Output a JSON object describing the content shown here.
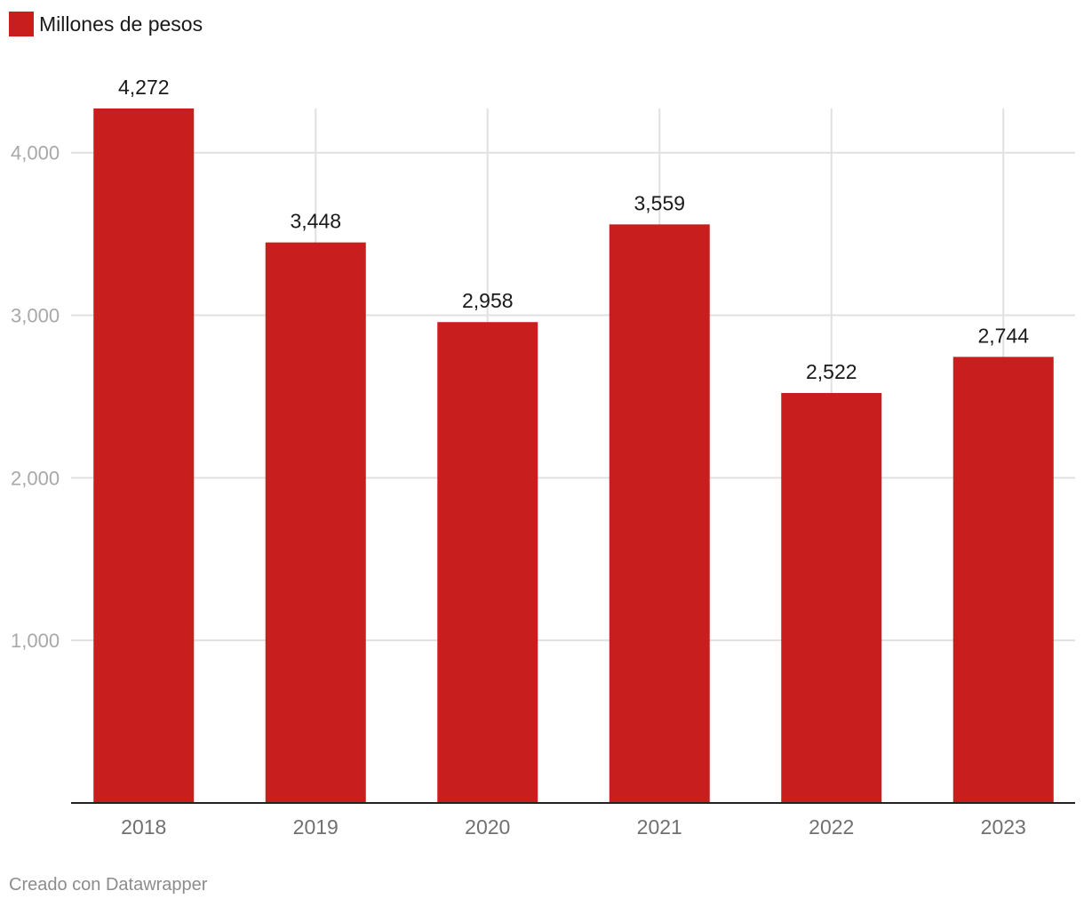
{
  "legend": {
    "label": "Millones de pesos",
    "color": "#c81e1e"
  },
  "credit": "Creado con Datawrapper",
  "chart_data": {
    "type": "bar",
    "categories": [
      "2018",
      "2019",
      "2020",
      "2021",
      "2022",
      "2023"
    ],
    "series": [
      {
        "name": "Millones de pesos",
        "values": [
          4272,
          3448,
          2958,
          3559,
          2522,
          2744
        ],
        "value_labels": [
          "4,272",
          "3,448",
          "2,958",
          "3,559",
          "2,522",
          "2,744"
        ]
      }
    ],
    "title": "",
    "xlabel": "",
    "ylabel": "",
    "ylim": [
      0,
      4272
    ],
    "yticks": [
      1000,
      2000,
      3000,
      4000
    ],
    "ytick_labels": [
      "1,000",
      "2,000",
      "3,000",
      "4,000"
    ],
    "grid": true,
    "legend_position": "top-left",
    "bar_color": "#c81e1e"
  }
}
